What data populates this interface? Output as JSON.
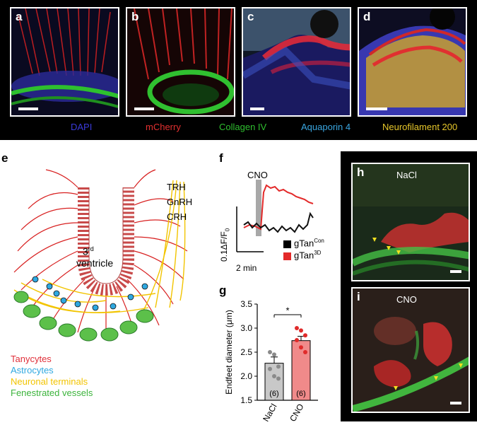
{
  "panel_letters": [
    "a",
    "b",
    "c",
    "d",
    "e",
    "f",
    "g",
    "h",
    "i"
  ],
  "stain_legend": [
    {
      "text": "DAPI",
      "color": "#3a3ad8"
    },
    {
      "text": "mCherry",
      "color": "#e23030"
    },
    {
      "text": "Collagen IV",
      "color": "#2fbf2f"
    },
    {
      "text": "Aquaporin 4",
      "color": "#3aa6e0"
    },
    {
      "text": "Neurofilament 200",
      "color": "#e7c72a"
    }
  ],
  "diagram": {
    "ventricle_label_super": "rd",
    "ventricle_label_num": "3",
    "ventricle_label_word": "ventricle",
    "hormones": [
      "TRH",
      "GnRH",
      "CRH"
    ],
    "legend": [
      {
        "text": "Tanycytes",
        "color": "#e0303a"
      },
      {
        "text": "Astrocytes",
        "color": "#2fa8e0"
      },
      {
        "text": "Neuronal terminals",
        "color": "#f2c400"
      },
      {
        "text": "Fenestrated vessels",
        "color": "#3cb43c"
      }
    ]
  },
  "trace_panel": {
    "stim_label": "CNO",
    "scale_y": "0.1ΔF/F",
    "scale_y_sub": "0",
    "scale_x": "2 min",
    "legend": [
      {
        "main": "gTan",
        "sup": "Con",
        "color": "#000000"
      },
      {
        "main": "gTan",
        "sup": "3D",
        "color": "#e32a2a"
      }
    ]
  },
  "chart_data": {
    "type": "bar",
    "categories": [
      "NaCl",
      "CNO"
    ],
    "values": [
      2.27,
      2.74
    ],
    "errors": [
      0.13,
      0.09
    ],
    "n_labels": [
      "(6)",
      "(6)"
    ],
    "points": [
      [
        2.5,
        2.45,
        2.2,
        2.15,
        2.0,
        1.95
      ],
      [
        3.0,
        2.95,
        2.85,
        2.75,
        2.6,
        2.5
      ]
    ],
    "colors": [
      "#c8c8c8",
      "#f08a8a"
    ],
    "point_colors": [
      "#8a8a8a",
      "#e02a2a"
    ],
    "ylabel": "Endfeet diameter (μm)",
    "ylim": [
      1.5,
      3.5
    ],
    "yticks": [
      "1.5",
      "2.0",
      "2.5",
      "3.0",
      "3.5"
    ],
    "significance": "*"
  },
  "image_labels": {
    "h": "NaCl",
    "i": "CNO"
  }
}
